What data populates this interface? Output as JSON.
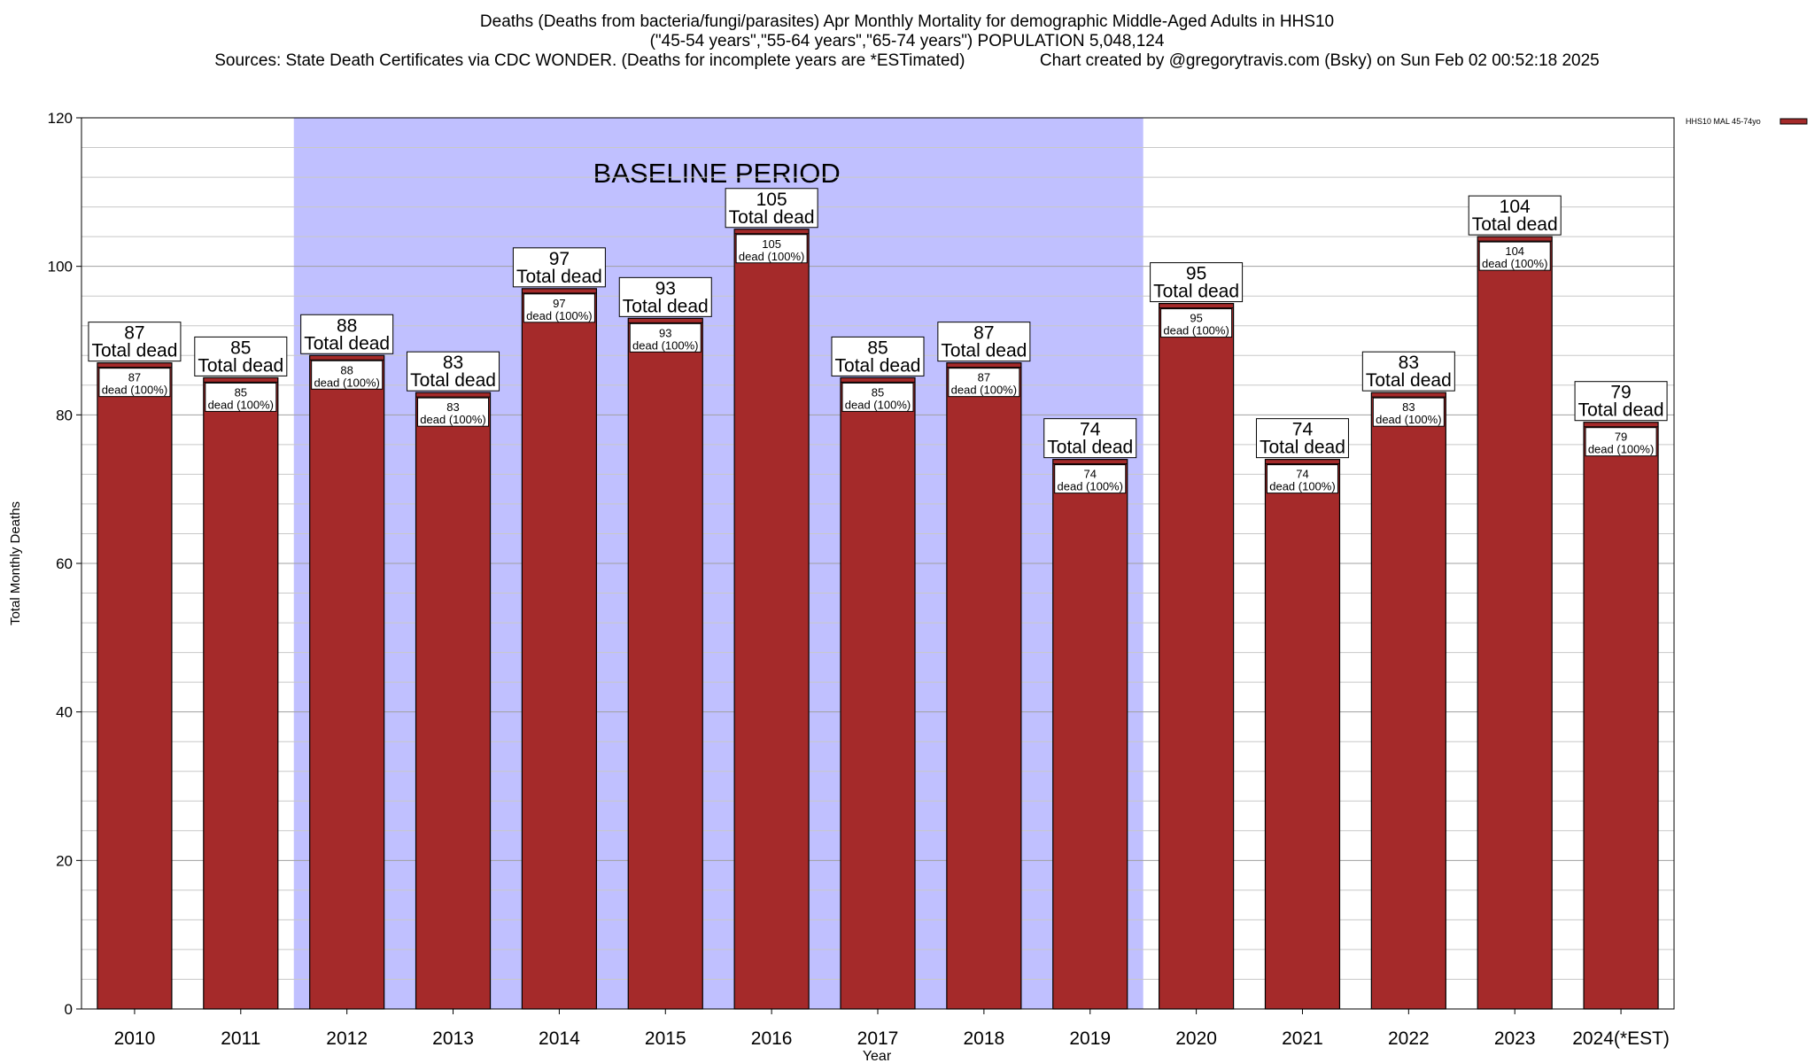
{
  "title": {
    "line1": "Deaths (Deaths from bacteria/fungi/parasites) Apr Monthly Mortality for demographic Middle-Aged Adults in HHS10",
    "line2": "(\"45-54 years\",\"55-64 years\",\"65-74 years\") POPULATION 5,048,124",
    "line3": "Sources: State Death Certificates via CDC WONDER. (Deaths for incomplete years are *ESTimated)                Chart created by @gregorytravis.com (Bsky) on Sun Feb 02 00:52:18 2025"
  },
  "chart_data": {
    "type": "bar",
    "categories": [
      "2010",
      "2011",
      "2012",
      "2013",
      "2014",
      "2015",
      "2016",
      "2017",
      "2018",
      "2019",
      "2020",
      "2021",
      "2022",
      "2023",
      "2024(*EST)"
    ],
    "series": [
      {
        "name": "HHS10 MAL 45-74yo",
        "values": [
          87,
          85,
          88,
          83,
          97,
          93,
          105,
          85,
          87,
          74,
          95,
          74,
          83,
          104,
          79
        ]
      }
    ],
    "xlabel": "Year",
    "ylabel": "Total Monthly Deaths",
    "ylim": [
      0,
      120
    ],
    "yticks": [
      0,
      20,
      40,
      60,
      80,
      100,
      120
    ],
    "grid": true,
    "legend_position": "top-right",
    "baseline_period": {
      "label": "BASELINE PERIOD",
      "from": "2012",
      "to": "2019",
      "color": "#c0c0ff"
    },
    "bar_color": "#a52a2a",
    "top_label_suffix": "Total dead",
    "inner_label_suffix": "dead (100%)"
  }
}
